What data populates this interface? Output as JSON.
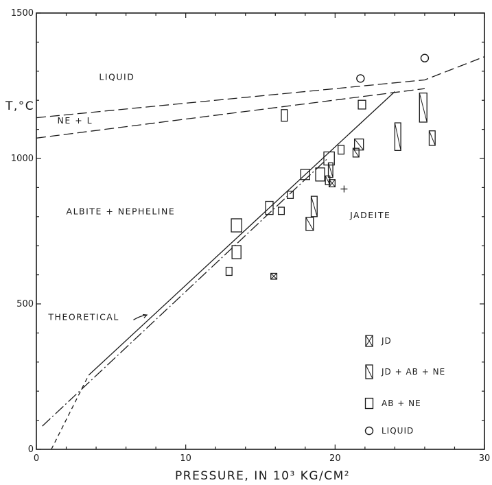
{
  "chart_data": {
    "type": "scatter",
    "title": "",
    "xlabel": "PRESSURE, IN 10³ KG/CM²",
    "ylabel": "T,°C",
    "xlim": [
      0,
      30
    ],
    "ylim": [
      0,
      1500
    ],
    "xticks": [
      {
        "value": 0,
        "label": "0"
      },
      {
        "value": 10,
        "label": "10"
      },
      {
        "value": 20,
        "label": "20"
      },
      {
        "value": 30,
        "label": "30"
      }
    ],
    "yticks": [
      {
        "value": 0,
        "label": "0"
      },
      {
        "value": 500,
        "label": "500"
      },
      {
        "value": 1000,
        "label": "1000"
      },
      {
        "value": 1500,
        "label": "1500"
      }
    ],
    "grid": false,
    "legend_position": "lower-right",
    "region_labels": [
      {
        "text": "LIQUID",
        "x": 4.2,
        "y": 1270
      },
      {
        "text": "NE + L",
        "x": 1.4,
        "y": 1120
      },
      {
        "text": "ALBITE + NEPHELINE",
        "x": 2.0,
        "y": 808
      },
      {
        "text": "JADEITE",
        "x": 21.0,
        "y": 795
      },
      {
        "text": "THEORETICAL",
        "x": 0.8,
        "y": 445
      }
    ],
    "lines": [
      {
        "id": "liquidus-upper",
        "style": "dashed",
        "points": [
          [
            0,
            1140
          ],
          [
            26,
            1270
          ],
          [
            30,
            1350
          ]
        ]
      },
      {
        "id": "liquidus-lower",
        "style": "dashed",
        "points": [
          [
            0,
            1070
          ],
          [
            26,
            1240
          ]
        ]
      },
      {
        "id": "experimental-boundary",
        "style": "solid",
        "points": [
          [
            3.5,
            255
          ],
          [
            24,
            1230
          ]
        ]
      },
      {
        "id": "experimental-boundary-extension",
        "style": "short-dashed",
        "points": [
          [
            1.0,
            0
          ],
          [
            3.5,
            255
          ]
        ]
      },
      {
        "id": "theoretical-boundary",
        "style": "dash-dot",
        "points": [
          [
            0.4,
            80
          ],
          [
            19.5,
            1000
          ]
        ]
      }
    ],
    "theoretical_arrow": {
      "from": [
        6.5,
        445
      ],
      "to": [
        7.4,
        462
      ]
    },
    "series": [
      {
        "name": "JD",
        "marker": "box-cross",
        "points": [
          {
            "x": 15.9,
            "y": 595,
            "w": 0.4,
            "h": 20
          },
          {
            "x": 19.8,
            "y": 915,
            "w": 0.4,
            "h": 25
          }
        ]
      },
      {
        "name": "JD + AB + NE",
        "marker": "box-diagonal",
        "points": [
          {
            "x": 18.3,
            "y": 775,
            "w": 0.5,
            "h": 45
          },
          {
            "x": 18.6,
            "y": 835,
            "w": 0.4,
            "h": 70
          },
          {
            "x": 19.7,
            "y": 960,
            "w": 0.3,
            "h": 50
          },
          {
            "x": 19.5,
            "y": 925,
            "w": 0.3,
            "h": 30
          },
          {
            "x": 21.4,
            "y": 1020,
            "w": 0.4,
            "h": 30
          },
          {
            "x": 21.6,
            "y": 1048,
            "w": 0.6,
            "h": 38
          },
          {
            "x": 24.2,
            "y": 1075,
            "w": 0.4,
            "h": 95
          },
          {
            "x": 25.9,
            "y": 1175,
            "w": 0.5,
            "h": 100
          },
          {
            "x": 26.5,
            "y": 1070,
            "w": 0.4,
            "h": 50
          }
        ]
      },
      {
        "name": "AB + NE",
        "marker": "box",
        "points": [
          {
            "x": 12.9,
            "y": 612,
            "w": 0.4,
            "h": 28
          },
          {
            "x": 13.4,
            "y": 678,
            "w": 0.6,
            "h": 45
          },
          {
            "x": 13.4,
            "y": 770,
            "w": 0.7,
            "h": 45
          },
          {
            "x": 15.6,
            "y": 830,
            "w": 0.5,
            "h": 45
          },
          {
            "x": 16.4,
            "y": 820,
            "w": 0.4,
            "h": 25
          },
          {
            "x": 17.0,
            "y": 875,
            "w": 0.4,
            "h": 25
          },
          {
            "x": 18.0,
            "y": 945,
            "w": 0.6,
            "h": 35
          },
          {
            "x": 19.0,
            "y": 945,
            "w": 0.6,
            "h": 45
          },
          {
            "x": 19.6,
            "y": 1000,
            "w": 0.7,
            "h": 45
          },
          {
            "x": 20.4,
            "y": 1030,
            "w": 0.4,
            "h": 30
          },
          {
            "x": 21.8,
            "y": 1185,
            "w": 0.5,
            "h": 30
          },
          {
            "x": 16.6,
            "y": 1148,
            "w": 0.4,
            "h": 40
          }
        ]
      },
      {
        "name": "LIQUID",
        "marker": "circle",
        "points": [
          {
            "x": 21.7,
            "y": 1275
          },
          {
            "x": 26.0,
            "y": 1345
          }
        ]
      }
    ],
    "plus_marker": {
      "x": 20.6,
      "y": 895
    }
  }
}
